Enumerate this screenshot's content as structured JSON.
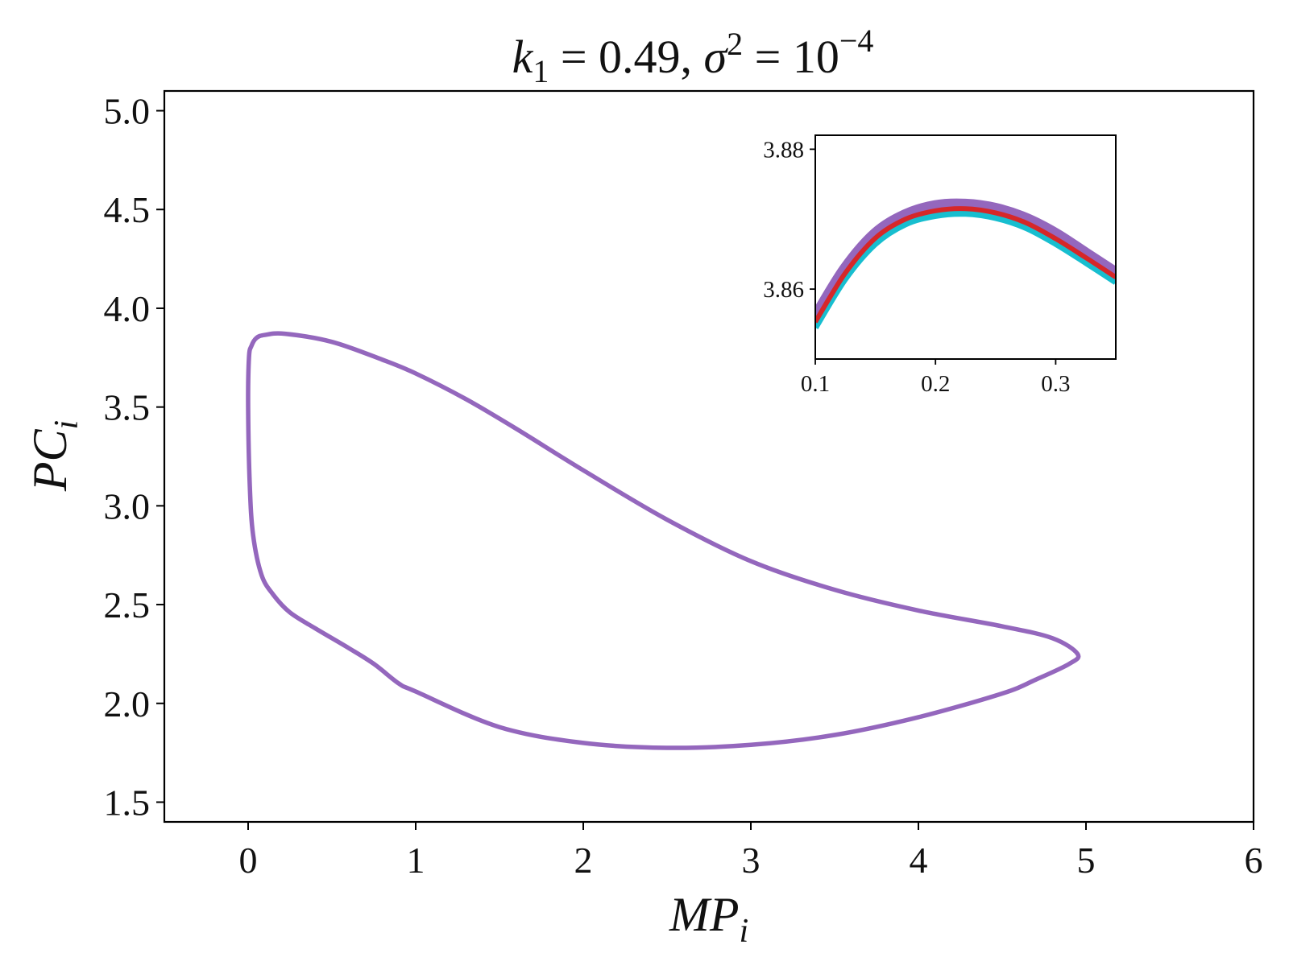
{
  "chart_data": [
    {
      "type": "line",
      "title": {
        "k": "k",
        "k_sub": "1",
        "eq1": " = 0.49, ",
        "sigma": "σ",
        "sigma_sup": "2",
        "eq2": " = 10",
        "exp": "−4"
      },
      "xlabel": {
        "main": "MP",
        "sub": "i"
      },
      "ylabel": {
        "main": "PC",
        "sub": "i"
      },
      "xlim": [
        -0.5,
        6
      ],
      "ylim": [
        1.4,
        5.1
      ],
      "xticks": [
        0,
        1,
        2,
        3,
        4,
        5,
        6
      ],
      "xtick_labels": [
        "0",
        "1",
        "2",
        "3",
        "4",
        "5",
        "6"
      ],
      "yticks": [
        1.5,
        2.0,
        2.5,
        3.0,
        3.5,
        4.0,
        4.5,
        5.0
      ],
      "ytick_labels": [
        "1.5",
        "2.0",
        "2.5",
        "3.0",
        "3.5",
        "4.0",
        "4.5",
        "5.0"
      ],
      "grid": false,
      "series": [
        {
          "color": "#9467bd",
          "x": [
            0.22,
            0.5,
            0.8,
            1.0,
            1.3,
            1.6,
            2.0,
            2.5,
            3.0,
            3.5,
            4.0,
            4.5,
            4.8,
            4.95,
            4.9,
            4.7,
            4.5,
            4.0,
            3.5,
            3.0,
            2.5,
            2.0,
            1.5,
            1.0,
            0.9,
            0.75,
            0.6,
            0.4,
            0.25,
            0.15,
            0.08,
            0.03,
            0.01,
            0.0,
            0.005,
            0.02,
            0.05,
            0.1,
            0.22
          ],
          "y": [
            3.871,
            3.83,
            3.74,
            3.67,
            3.54,
            3.39,
            3.18,
            2.93,
            2.72,
            2.575,
            2.47,
            2.39,
            2.33,
            2.25,
            2.2,
            2.12,
            2.05,
            1.93,
            1.84,
            1.79,
            1.775,
            1.8,
            1.88,
            2.06,
            2.1,
            2.2,
            2.28,
            2.38,
            2.46,
            2.55,
            2.65,
            2.85,
            3.1,
            3.5,
            3.75,
            3.81,
            3.85,
            3.865,
            3.871
          ]
        }
      ]
    },
    {
      "type": "line",
      "role": "inset",
      "xlim": [
        0.1,
        0.35
      ],
      "ylim": [
        3.85,
        3.882
      ],
      "xticks": [
        0.1,
        0.2,
        0.3
      ],
      "xtick_labels": [
        "0.1",
        "0.2",
        "0.3"
      ],
      "yticks": [
        3.86,
        3.88
      ],
      "ytick_labels": [
        "3.86",
        "3.88"
      ],
      "grid": false,
      "series": [
        {
          "color": "#17becf",
          "x": [
            0.1,
            0.125,
            0.15,
            0.175,
            0.2,
            0.225,
            0.25,
            0.275,
            0.3,
            0.325,
            0.35
          ],
          "y": [
            3.8545,
            3.8615,
            3.8665,
            3.8693,
            3.8705,
            3.8708,
            3.8702,
            3.8688,
            3.8665,
            3.8638,
            3.861
          ]
        },
        {
          "color": "#9467bd",
          "x": [
            0.1,
            0.125,
            0.15,
            0.175,
            0.2,
            0.225,
            0.25,
            0.275,
            0.3,
            0.325,
            0.35
          ],
          "y": [
            3.8558,
            3.8628,
            3.8678,
            3.8705,
            3.8718,
            3.872,
            3.8714,
            3.87,
            3.8678,
            3.865,
            3.8622
          ]
        },
        {
          "color": "#d62728",
          "x": [
            0.1,
            0.125,
            0.15,
            0.175,
            0.2,
            0.225,
            0.25,
            0.275,
            0.3,
            0.325,
            0.35
          ],
          "y": [
            3.8553,
            3.8623,
            3.8673,
            3.87,
            3.8712,
            3.8715,
            3.8709,
            3.8695,
            3.8672,
            3.8645,
            3.8617
          ]
        }
      ]
    }
  ]
}
